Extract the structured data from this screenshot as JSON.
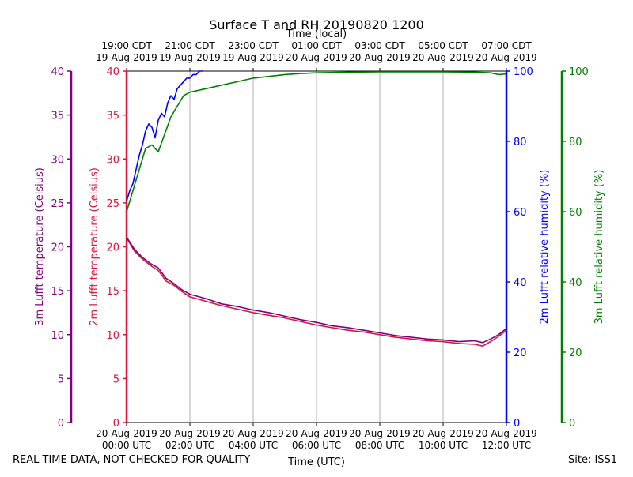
{
  "chart_data": {
    "type": "line",
    "title": "Surface T and RH 20190820 1200",
    "top_axis_title": "Time (local)",
    "xlabel": "Time (UTC)",
    "x_range_hours_utc": [
      0,
      12
    ],
    "bottom_ticks": [
      {
        "hour": 0,
        "line1": "20-Aug-2019",
        "line2": "00:00 UTC"
      },
      {
        "hour": 2,
        "line1": "20-Aug-2019",
        "line2": "02:00 UTC"
      },
      {
        "hour": 4,
        "line1": "20-Aug-2019",
        "line2": "04:00 UTC"
      },
      {
        "hour": 6,
        "line1": "20-Aug-2019",
        "line2": "06:00 UTC"
      },
      {
        "hour": 8,
        "line1": "20-Aug-2019",
        "line2": "08:00 UTC"
      },
      {
        "hour": 10,
        "line1": "20-Aug-2019",
        "line2": "10:00 UTC"
      },
      {
        "hour": 12,
        "line1": "20-Aug-2019",
        "line2": "12:00 UTC"
      }
    ],
    "top_ticks": [
      {
        "hour": 0,
        "line1": "19:00 CDT",
        "line2": "19-Aug-2019"
      },
      {
        "hour": 2,
        "line1": "21:00 CDT",
        "line2": "19-Aug-2019"
      },
      {
        "hour": 4,
        "line1": "23:00 CDT",
        "line2": "19-Aug-2019"
      },
      {
        "hour": 6,
        "line1": "01:00 CDT",
        "line2": "20-Aug-2019"
      },
      {
        "hour": 8,
        "line1": "03:00 CDT",
        "line2": "20-Aug-2019"
      },
      {
        "hour": 10,
        "line1": "05:00 CDT",
        "line2": "20-Aug-2019"
      },
      {
        "hour": 12,
        "line1": "07:00 CDT",
        "line2": "20-Aug-2019"
      }
    ],
    "axes": {
      "temp3m": {
        "label": "3m Lufft temperature (Celsius)",
        "ylim": [
          0,
          40
        ],
        "ticks": [
          "0",
          "5",
          "10",
          "15",
          "20",
          "25",
          "30",
          "35",
          "40"
        ],
        "color": "#800080"
      },
      "temp2m": {
        "label": "2m Lufft temperature (Celsius)",
        "ylim": [
          0,
          40
        ],
        "ticks": [
          "0",
          "5",
          "10",
          "15",
          "20",
          "25",
          "30",
          "35",
          "40"
        ],
        "color": "#dc143c"
      },
      "rh2m": {
        "label": "2m Lufft relative humidity (%)",
        "ylim": [
          0,
          100
        ],
        "ticks": [
          "0",
          "20",
          "40",
          "60",
          "80",
          "100"
        ],
        "color": "#0000ff"
      },
      "rh3m": {
        "label": "3m Lufft relative humidity (%)",
        "ylim": [
          0,
          100
        ],
        "ticks": [
          "0",
          "20",
          "40",
          "60",
          "80",
          "100"
        ],
        "color": "#008000"
      }
    },
    "grid": "vertical",
    "series": [
      {
        "name": "2m Lufft temperature",
        "axis": "temp2m",
        "color": "#dc143c",
        "x": [
          0,
          0.25,
          0.5,
          0.75,
          1.0,
          1.25,
          1.5,
          1.75,
          2.0,
          2.5,
          3.0,
          3.5,
          4.0,
          4.5,
          5.0,
          5.5,
          6.0,
          6.5,
          7.0,
          7.5,
          8.0,
          8.5,
          9.0,
          9.5,
          10.0,
          10.5,
          11.0,
          11.25,
          11.5,
          11.75,
          12.0
        ],
        "values": [
          21.0,
          19.5,
          18.6,
          17.9,
          17.3,
          16.1,
          15.6,
          14.9,
          14.3,
          13.8,
          13.3,
          12.9,
          12.5,
          12.2,
          11.9,
          11.5,
          11.1,
          10.8,
          10.5,
          10.3,
          10.0,
          9.7,
          9.5,
          9.3,
          9.2,
          9.0,
          8.9,
          8.7,
          9.2,
          9.8,
          10.5
        ]
      },
      {
        "name": "3m Lufft temperature",
        "axis": "temp3m",
        "color": "#800080",
        "x": [
          0,
          0.25,
          0.5,
          0.75,
          1.0,
          1.25,
          1.5,
          1.75,
          2.0,
          2.5,
          3.0,
          3.5,
          4.0,
          4.5,
          5.0,
          5.5,
          6.0,
          6.5,
          7.0,
          7.5,
          8.0,
          8.5,
          9.0,
          9.5,
          10.0,
          10.5,
          11.0,
          11.25,
          11.5,
          11.75,
          12.0
        ],
        "values": [
          21.1,
          19.7,
          18.8,
          18.1,
          17.6,
          16.4,
          15.8,
          15.1,
          14.6,
          14.1,
          13.5,
          13.2,
          12.8,
          12.5,
          12.1,
          11.7,
          11.4,
          11.0,
          10.8,
          10.5,
          10.2,
          9.9,
          9.7,
          9.5,
          9.4,
          9.2,
          9.3,
          9.1,
          9.5,
          10.0,
          10.7
        ]
      },
      {
        "name": "2m Lufft relative humidity",
        "axis": "rh2m",
        "color": "#0000ff",
        "x": [
          0,
          0.1,
          0.2,
          0.3,
          0.4,
          0.5,
          0.6,
          0.7,
          0.8,
          0.9,
          1.0,
          1.1,
          1.2,
          1.3,
          1.4,
          1.5,
          1.6,
          1.7,
          1.8,
          1.9,
          2.0,
          2.1,
          2.2,
          2.3,
          2.4
        ],
        "values": [
          63,
          66,
          68,
          72,
          76,
          79,
          83,
          85,
          84,
          81,
          86,
          88,
          87,
          91,
          93,
          92,
          95,
          96,
          97,
          98,
          98,
          99,
          99,
          100,
          100
        ]
      },
      {
        "name": "3m Lufft relative humidity",
        "axis": "rh3m",
        "color": "#008000",
        "x": [
          0,
          0.2,
          0.4,
          0.6,
          0.8,
          1.0,
          1.2,
          1.4,
          1.6,
          1.8,
          2.0,
          2.5,
          3.0,
          3.5,
          4.0,
          4.5,
          5.0,
          5.5,
          6.0,
          7.0,
          8.0,
          9.0,
          10.0,
          11.0,
          11.5,
          11.75,
          12.0
        ],
        "values": [
          60,
          66,
          72,
          78,
          79,
          77,
          82,
          87,
          90,
          93,
          94,
          95,
          96,
          97,
          98,
          98.5,
          99,
          99.3,
          99.5,
          99.7,
          99.8,
          99.8,
          99.8,
          99.7,
          99.5,
          99.0,
          99.2
        ]
      }
    ]
  },
  "footer": {
    "disclaimer": "REAL TIME DATA, NOT CHECKED FOR QUALITY",
    "site": "Site: ISS1"
  }
}
